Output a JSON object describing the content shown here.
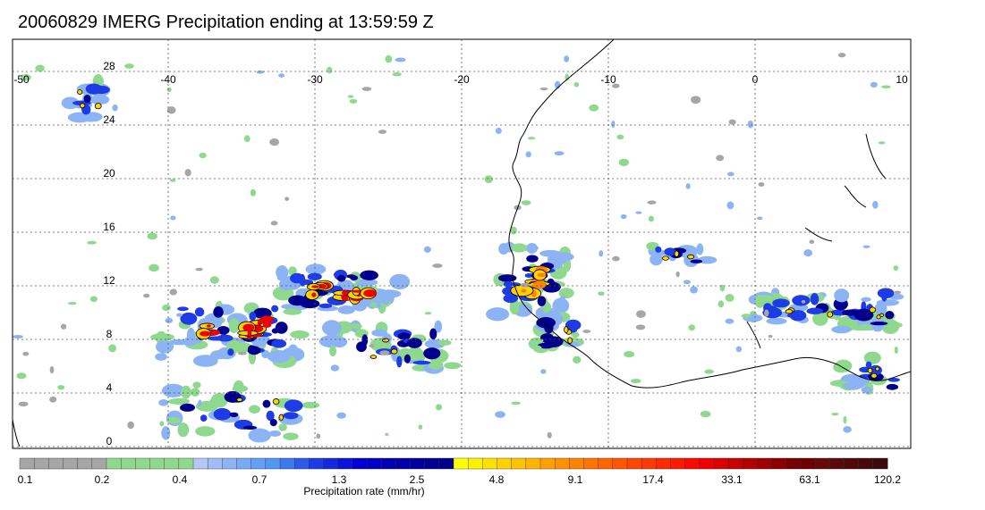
{
  "title": "20060829 IMERG Precipitation ending at 13:59:59 Z",
  "map": {
    "lon_ticks": [
      "-50",
      "-40",
      "-30",
      "-20",
      "-10",
      "0",
      "10"
    ],
    "lat_ticks": [
      "28",
      "24",
      "20",
      "16",
      "12",
      "8",
      "4",
      "0"
    ],
    "lon_range": [
      -50,
      10
    ],
    "lat_range": [
      -0.5,
      29.5
    ],
    "grid": "dotted"
  },
  "colorbar": {
    "label": "Precipitation rate (mm/hr)",
    "tick_labels": [
      "0.1",
      "0.2",
      "0.4",
      "0.7",
      "1.3",
      "2.5",
      "4.8",
      "9.1",
      "17.4",
      "33.1",
      "63.1",
      "120.2"
    ],
    "colors": [
      "#a6a6a6",
      "#a6a6a6",
      "#a6a6a6",
      "#a6a6a6",
      "#a6a6a6",
      "#a6a6a6",
      "#8fd98f",
      "#8fd98f",
      "#8fd98f",
      "#8fd98f",
      "#8fd98f",
      "#8fd98f",
      "#b4c8f5",
      "#a0bef5",
      "#8cb4f5",
      "#78aaf5",
      "#64a0f5",
      "#5096f5",
      "#3c78f0",
      "#2d5aeb",
      "#1e3ce6",
      "#1428e1",
      "#0a14dc",
      "#0000d2",
      "#0000c8",
      "#0000b4",
      "#0000aa",
      "#0000a0",
      "#000096",
      "#00008c",
      "#ffff00",
      "#fff000",
      "#ffe100",
      "#ffd200",
      "#ffc300",
      "#ffb400",
      "#ffa000",
      "#ff9100",
      "#ff8200",
      "#ff7300",
      "#ff6400",
      "#ff5500",
      "#ff4600",
      "#ff3700",
      "#ff2800",
      "#ff1900",
      "#fa0a00",
      "#f00000",
      "#dc0000",
      "#c80000",
      "#b40000",
      "#a00000",
      "#8c0000",
      "#780000",
      "#6e0000",
      "#640a0a",
      "#5a0a0a",
      "#500a0a",
      "#460a0a",
      "#3c0a0a"
    ]
  },
  "precip_palette": {
    "gray": "#a6a6a6",
    "green": "#8fd98f",
    "lightblue": "#8cb4f5",
    "blue": "#1e3ce6",
    "darkblue": "#00008c",
    "yellow": "#ffd200",
    "orange": "#ff8200",
    "red": "#f00000"
  }
}
